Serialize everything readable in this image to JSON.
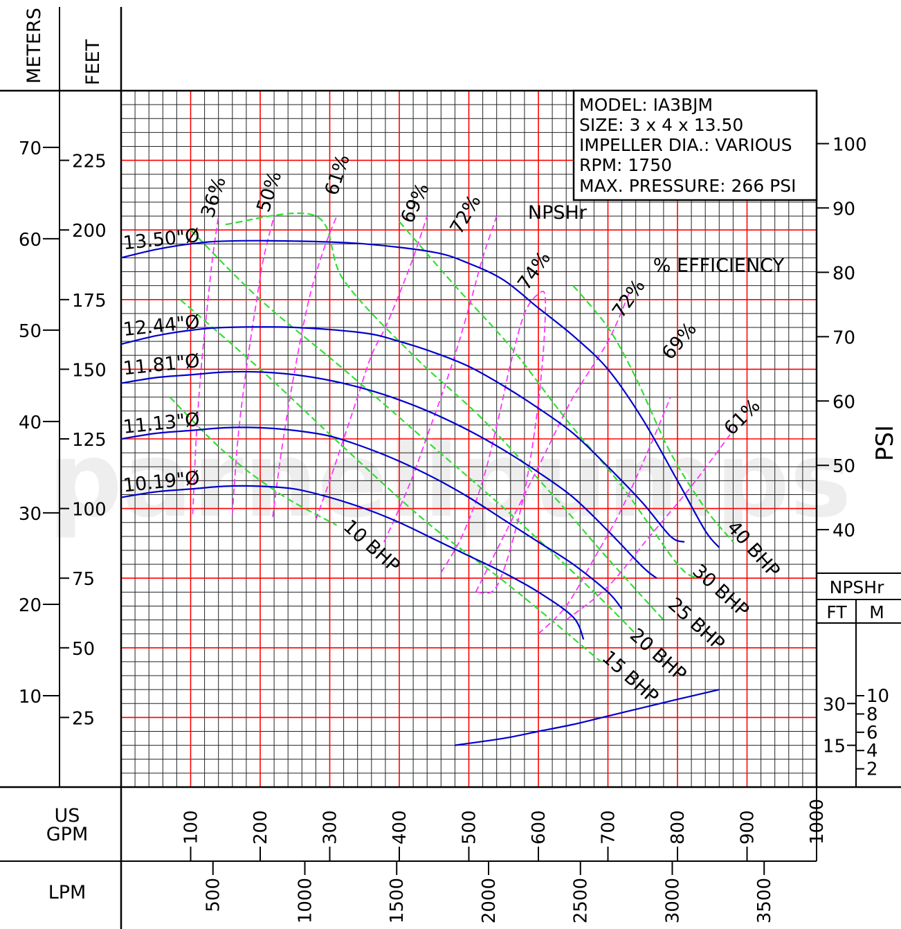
{
  "chart_data": {
    "type": "line",
    "watermark": "parnellpumps",
    "info_box": [
      "MODEL:  IA3BJM",
      "SIZE:  3  x  4  x  13.50",
      "IMPELLER  DIA.:  VARIOUS",
      "RPM:  1750",
      "MAX.  PRESSURE:  266  PSI"
    ],
    "axes": {
      "meters_label": "METERS",
      "feet_label": "FEET",
      "gpm_label": [
        "US",
        "GPM"
      ],
      "lpm_label": "LPM",
      "psi_label": "PSI",
      "gpm_range": [
        0,
        1000
      ],
      "feet_range": [
        0,
        250
      ],
      "gpm_ticks": [
        100,
        200,
        300,
        400,
        500,
        600,
        700,
        800,
        900,
        1000
      ],
      "feet_ticks": [
        25,
        50,
        75,
        100,
        125,
        150,
        175,
        200,
        225
      ],
      "meter_ticks": [
        10,
        20,
        30,
        40,
        50,
        60,
        70
      ],
      "psi_ticks": [
        40,
        50,
        60,
        70,
        80,
        90,
        100
      ],
      "lpm_ticks": [
        500,
        1000,
        1500,
        2000,
        2500,
        3000,
        3500
      ],
      "grid": true,
      "major_grid": {
        "gpm_step": 100,
        "feet_step": 25,
        "color": "#ff0000"
      },
      "minor_grid": {
        "gpm_step": 20,
        "feet_step": 5,
        "color": "#222222"
      }
    },
    "npshr_panel": {
      "title": "NPSHr",
      "ft_label": "FT",
      "m_label": "M",
      "ft_ticks": [
        15,
        30
      ],
      "m_ticks": [
        2,
        4,
        6,
        8,
        10
      ]
    },
    "series": [
      {
        "name": "13.50\"Ø",
        "kind": "head",
        "color": "#0000cc",
        "points": [
          [
            0,
            190
          ],
          [
            50,
            193
          ],
          [
            100,
            195
          ],
          [
            150,
            196
          ],
          [
            250,
            196
          ],
          [
            350,
            195
          ],
          [
            450,
            192
          ],
          [
            500,
            188
          ],
          [
            550,
            182
          ],
          [
            600,
            172
          ],
          [
            650,
            162
          ],
          [
            700,
            150
          ],
          [
            750,
            132
          ],
          [
            800,
            110
          ],
          [
            840,
            92
          ],
          [
            860,
            86
          ]
        ]
      },
      {
        "name": "12.44\"Ø",
        "kind": "head",
        "color": "#0000cc",
        "points": [
          [
            0,
            159
          ],
          [
            50,
            162
          ],
          [
            100,
            164
          ],
          [
            150,
            165
          ],
          [
            250,
            165
          ],
          [
            350,
            163
          ],
          [
            400,
            160
          ],
          [
            450,
            156
          ],
          [
            500,
            151
          ],
          [
            550,
            144
          ],
          [
            600,
            136
          ],
          [
            650,
            127
          ],
          [
            700,
            115
          ],
          [
            750,
            102
          ],
          [
            790,
            90
          ],
          [
            810,
            88
          ]
        ]
      },
      {
        "name": "11.81\"Ø",
        "kind": "head",
        "color": "#0000cc",
        "points": [
          [
            0,
            145
          ],
          [
            50,
            147
          ],
          [
            100,
            148
          ],
          [
            150,
            149
          ],
          [
            200,
            149
          ],
          [
            250,
            148
          ],
          [
            300,
            146
          ],
          [
            350,
            143
          ],
          [
            400,
            139
          ],
          [
            450,
            134
          ],
          [
            500,
            128
          ],
          [
            550,
            121
          ],
          [
            600,
            113
          ],
          [
            650,
            104
          ],
          [
            700,
            92
          ],
          [
            750,
            79
          ],
          [
            770,
            75
          ]
        ]
      },
      {
        "name": "11.13\"Ø",
        "kind": "head",
        "color": "#0000cc",
        "points": [
          [
            0,
            125
          ],
          [
            50,
            127
          ],
          [
            100,
            128
          ],
          [
            150,
            129
          ],
          [
            200,
            129
          ],
          [
            250,
            128
          ],
          [
            300,
            126
          ],
          [
            350,
            122
          ],
          [
            400,
            117
          ],
          [
            450,
            111
          ],
          [
            500,
            104
          ],
          [
            550,
            96
          ],
          [
            600,
            88
          ],
          [
            650,
            80
          ],
          [
            700,
            70
          ],
          [
            720,
            64
          ]
        ]
      },
      {
        "name": "10.19\"Ø",
        "kind": "head",
        "color": "#0000cc",
        "points": [
          [
            0,
            104
          ],
          [
            50,
            106
          ],
          [
            100,
            107
          ],
          [
            150,
            108
          ],
          [
            200,
            108
          ],
          [
            250,
            107
          ],
          [
            300,
            104
          ],
          [
            350,
            100
          ],
          [
            400,
            95
          ],
          [
            450,
            89
          ],
          [
            500,
            83
          ],
          [
            550,
            77
          ],
          [
            600,
            70
          ],
          [
            650,
            61
          ],
          [
            665,
            53
          ]
        ]
      },
      {
        "name": "NPSHr",
        "kind": "npshr",
        "color": "#0000cc",
        "points": [
          [
            480,
            15
          ],
          [
            550,
            17.5
          ],
          [
            600,
            20
          ],
          [
            650,
            22.5
          ],
          [
            700,
            25.5
          ],
          [
            750,
            28.5
          ],
          [
            800,
            31.5
          ],
          [
            860,
            35
          ]
        ]
      },
      {
        "name": "36%",
        "kind": "efficiency",
        "color": "#ff33ff",
        "points": [
          [
            103,
            98
          ],
          [
            108,
            125
          ],
          [
            115,
            150
          ],
          [
            125,
            175
          ],
          [
            132,
            191
          ],
          [
            140,
            205
          ]
        ]
      },
      {
        "name": "50%",
        "kind": "efficiency",
        "color": "#ff33ff",
        "points": [
          [
            160,
            98
          ],
          [
            168,
            125
          ],
          [
            180,
            150
          ],
          [
            195,
            175
          ],
          [
            205,
            190
          ],
          [
            220,
            205
          ]
        ]
      },
      {
        "name": "61%",
        "kind": "efficiency",
        "color": "#ff33ff",
        "points": [
          [
            218,
            97
          ],
          [
            232,
            123
          ],
          [
            250,
            150
          ],
          [
            270,
            175
          ],
          [
            290,
            192
          ],
          [
            310,
            205
          ]
        ]
      },
      {
        "name": "69%",
        "kind": "efficiency",
        "color": "#ff33ff",
        "points": [
          [
            280,
            96
          ],
          [
            300,
            110
          ],
          [
            320,
            125
          ],
          [
            340,
            140
          ],
          [
            360,
            155
          ],
          [
            380,
            165
          ],
          [
            400,
            177
          ],
          [
            420,
            190
          ],
          [
            440,
            205
          ]
        ]
      },
      {
        "name": "72%",
        "kind": "efficiency",
        "color": "#ff33ff",
        "points": [
          [
            378,
            88
          ],
          [
            400,
            100
          ],
          [
            420,
            112
          ],
          [
            440,
            126
          ],
          [
            460,
            140
          ],
          [
            480,
            155
          ],
          [
            500,
            172
          ],
          [
            520,
            190
          ],
          [
            540,
            205
          ]
        ]
      },
      {
        "name": "74%",
        "kind": "efficiency",
        "color": "#ff33ff",
        "points": [
          [
            460,
            77
          ],
          [
            490,
            90
          ],
          [
            520,
            110
          ],
          [
            545,
            135
          ],
          [
            560,
            152
          ],
          [
            580,
            170
          ],
          [
            600,
            177
          ],
          [
            610,
            175
          ],
          [
            605,
            150
          ],
          [
            590,
            120
          ],
          [
            570,
            95
          ],
          [
            540,
            72
          ],
          [
            510,
            70
          ]
        ]
      },
      {
        "name": "72%",
        "kind": "efficiency",
        "color": "#ff33ff",
        "points": [
          [
            510,
            70
          ],
          [
            560,
            95
          ],
          [
            610,
            120
          ],
          [
            650,
            140
          ],
          [
            700,
            160
          ],
          [
            730,
            177
          ]
        ]
      },
      {
        "name": "69%",
        "kind": "efficiency",
        "color": "#ff33ff",
        "points": [
          [
            600,
            55
          ],
          [
            640,
            65
          ],
          [
            680,
            82
          ],
          [
            720,
            100
          ],
          [
            760,
            122
          ],
          [
            790,
            140
          ]
        ]
      },
      {
        "name": "61%",
        "kind": "efficiency",
        "color": "#ff33ff",
        "points": [
          [
            640,
            60
          ],
          [
            700,
            72
          ],
          [
            760,
            90
          ],
          [
            820,
            108
          ],
          [
            880,
            128
          ]
        ]
      },
      {
        "name": "10 BHP",
        "kind": "bhp",
        "color": "#33dd33",
        "points": [
          [
            70,
            140
          ],
          [
            150,
            120
          ],
          [
            230,
            105
          ],
          [
            310,
            94
          ]
        ]
      },
      {
        "name": "15 BHP",
        "kind": "bhp",
        "color": "#33dd33",
        "points": [
          [
            85,
            175
          ],
          [
            200,
            150
          ],
          [
            320,
            122
          ],
          [
            440,
            95
          ],
          [
            560,
            72
          ],
          [
            690,
            45
          ]
        ]
      },
      {
        "name": "20 BHP",
        "kind": "bhp",
        "color": "#33dd33",
        "points": [
          [
            100,
            200
          ],
          [
            200,
            175
          ],
          [
            320,
            150
          ],
          [
            440,
            124
          ],
          [
            560,
            98
          ],
          [
            680,
            70
          ],
          [
            740,
            55
          ]
        ]
      },
      {
        "name": "25 BHP",
        "kind": "bhp",
        "color": "#33dd33",
        "points": [
          [
            150,
            202
          ],
          [
            280,
            205
          ],
          [
            320,
            182
          ],
          [
            420,
            155
          ],
          [
            520,
            132
          ],
          [
            620,
            105
          ],
          [
            700,
            82
          ],
          [
            780,
            60
          ]
        ]
      },
      {
        "name": "30 BHP",
        "kind": "bhp",
        "color": "#33dd33",
        "points": [
          [
            400,
            203
          ],
          [
            480,
            180
          ],
          [
            560,
            158
          ],
          [
            640,
            132
          ],
          [
            720,
            108
          ],
          [
            800,
            80
          ],
          [
            830,
            75
          ]
        ]
      },
      {
        "name": "40 BHP",
        "kind": "bhp",
        "color": "#33dd33",
        "points": [
          [
            650,
            180
          ],
          [
            700,
            165
          ],
          [
            740,
            147
          ],
          [
            790,
            120
          ],
          [
            840,
            100
          ],
          [
            880,
            88
          ]
        ]
      }
    ],
    "annotations": [
      {
        "text": "NPSHr",
        "at": [
          585,
          204
        ],
        "rotate": 0
      },
      {
        "text": "%  EFFICIENCY",
        "at": [
          765,
          185
        ],
        "rotate": 0
      },
      {
        "text": "13.50\"Ø",
        "at": [
          4,
          193
        ],
        "rotate": -6
      },
      {
        "text": "12.44\"Ø",
        "at": [
          4,
          162
        ],
        "rotate": -6
      },
      {
        "text": "11.81\"Ø",
        "at": [
          4,
          148
        ],
        "rotate": -6
      },
      {
        "text": "11.13\"Ø",
        "at": [
          4,
          127
        ],
        "rotate": -6
      },
      {
        "text": "10.19\"Ø",
        "at": [
          4,
          106
        ],
        "rotate": -6
      },
      {
        "text": "36%",
        "at": [
          132,
          204
        ],
        "rotate": -72
      },
      {
        "text": "50%",
        "at": [
          212,
          206
        ],
        "rotate": -72
      },
      {
        "text": "61%",
        "at": [
          310,
          212
        ],
        "rotate": -72
      },
      {
        "text": "69%",
        "at": [
          418,
          202
        ],
        "rotate": -65
      },
      {
        "text": "72%",
        "at": [
          488,
          198
        ],
        "rotate": -60
      },
      {
        "text": "74%",
        "at": [
          584,
          178
        ],
        "rotate": -55
      },
      {
        "text": "72%",
        "at": [
          720,
          168
        ],
        "rotate": -55
      },
      {
        "text": "69%",
        "at": [
          790,
          153
        ],
        "rotate": -50
      },
      {
        "text": "61%",
        "at": [
          878,
          126
        ],
        "rotate": -45
      },
      {
        "text": "10  BHP",
        "at": [
          318,
          93
        ],
        "rotate": 42
      },
      {
        "text": "15  BHP",
        "at": [
          690,
          46
        ],
        "rotate": 42
      },
      {
        "text": "20  BHP",
        "at": [
          730,
          54
        ],
        "rotate": 42
      },
      {
        "text": "25  BHP",
        "at": [
          785,
          65
        ],
        "rotate": 42
      },
      {
        "text": "30  BHP",
        "at": [
          820,
          77
        ],
        "rotate": 42
      },
      {
        "text": "40  BHP",
        "at": [
          870,
          93
        ],
        "rotate": 48
      }
    ]
  }
}
